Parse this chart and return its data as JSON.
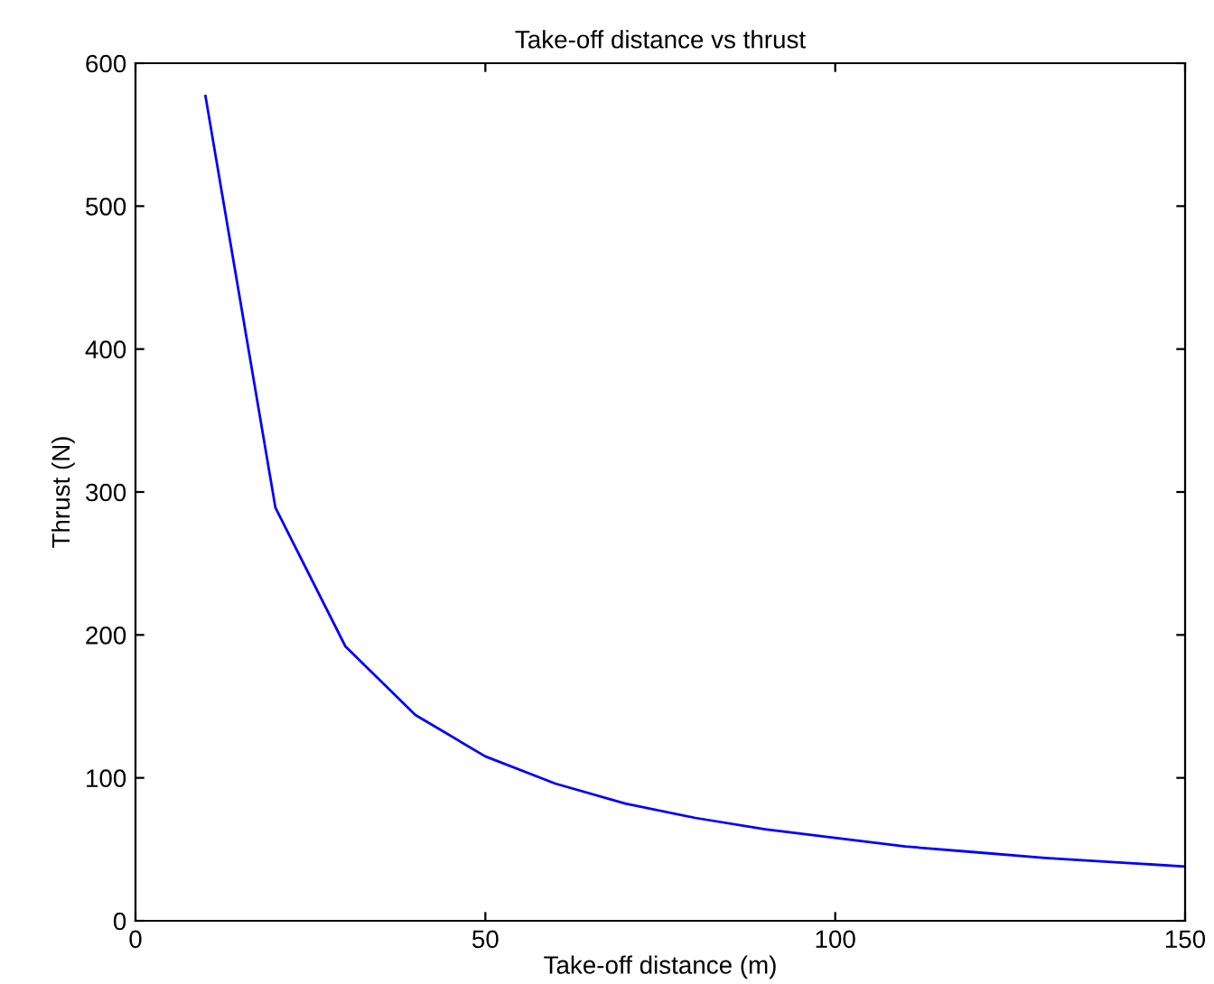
{
  "chart_data": {
    "type": "line",
    "title": "Take-off distance vs thrust",
    "xlabel": "Take-off distance (m)",
    "ylabel": "Thrust (N)",
    "x": [
      10,
      20,
      30,
      40,
      50,
      60,
      70,
      80,
      90,
      100,
      110,
      120,
      130,
      140,
      150
    ],
    "series": [
      {
        "color": "#0000ff",
        "values": [
          577,
          289,
          192,
          144,
          115,
          96,
          82,
          72,
          64,
          58,
          52,
          48,
          44,
          41,
          38
        ]
      }
    ],
    "xlim": [
      0,
      150
    ],
    "ylim": [
      0,
      600
    ],
    "xticks": [
      0,
      50,
      100,
      150
    ],
    "yticks": [
      0,
      100,
      200,
      300,
      400,
      500,
      600
    ],
    "grid": false,
    "legend": false,
    "marker": "none",
    "line_style": "solid"
  }
}
